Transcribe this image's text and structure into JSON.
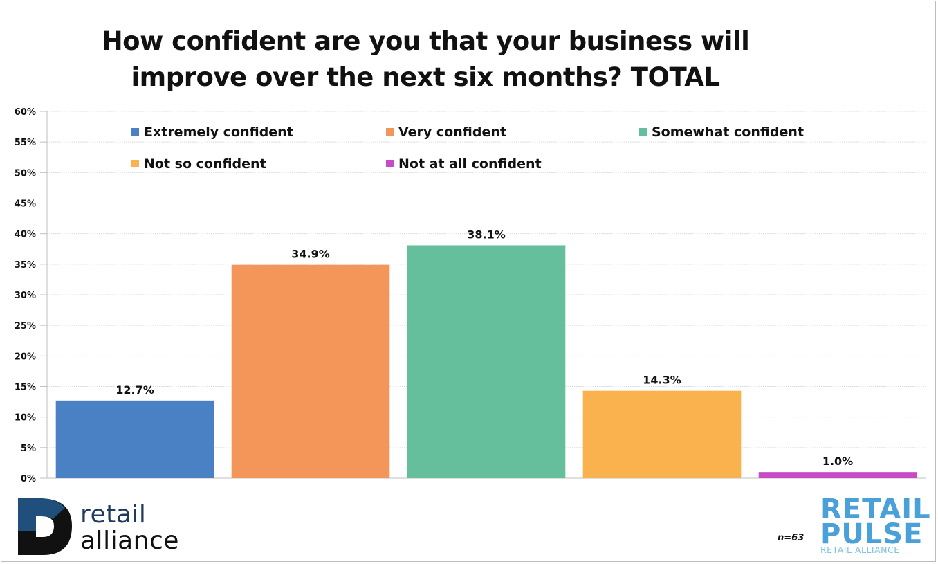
{
  "chart_data": {
    "type": "bar",
    "title": "How confident are you that your business will improve over the next six months? TOTAL",
    "title_lines": [
      "How confident are you that your business will",
      "improve over the next six months? TOTAL"
    ],
    "categories": [
      "Extremely confident",
      "Very confident",
      "Somewhat confident",
      "Not so confident",
      "Not at all confident"
    ],
    "values": [
      12.7,
      34.9,
      38.1,
      14.3,
      1.0
    ],
    "data_labels": [
      "12.7%",
      "34.9%",
      "38.1%",
      "14.3%",
      "1.0%"
    ],
    "colors": [
      "#4a80c4",
      "#f4955a",
      "#65bf9d",
      "#f9b24e",
      "#c74bc4"
    ],
    "ylim": [
      0,
      60
    ],
    "yticks": [
      "0%",
      "5%",
      "10%",
      "15%",
      "20%",
      "25%",
      "30%",
      "35%",
      "40%",
      "45%",
      "50%",
      "55%",
      "60%"
    ],
    "xlabel": "",
    "ylabel": "",
    "grid": true,
    "legend_position": "top"
  },
  "footnote": "n=63",
  "logos": {
    "left": {
      "line1": "retail",
      "line2": "alliance"
    },
    "right": {
      "line1": "RETAIL",
      "line2": "PULSE",
      "line3": "RETAIL ALLIANCE"
    }
  }
}
